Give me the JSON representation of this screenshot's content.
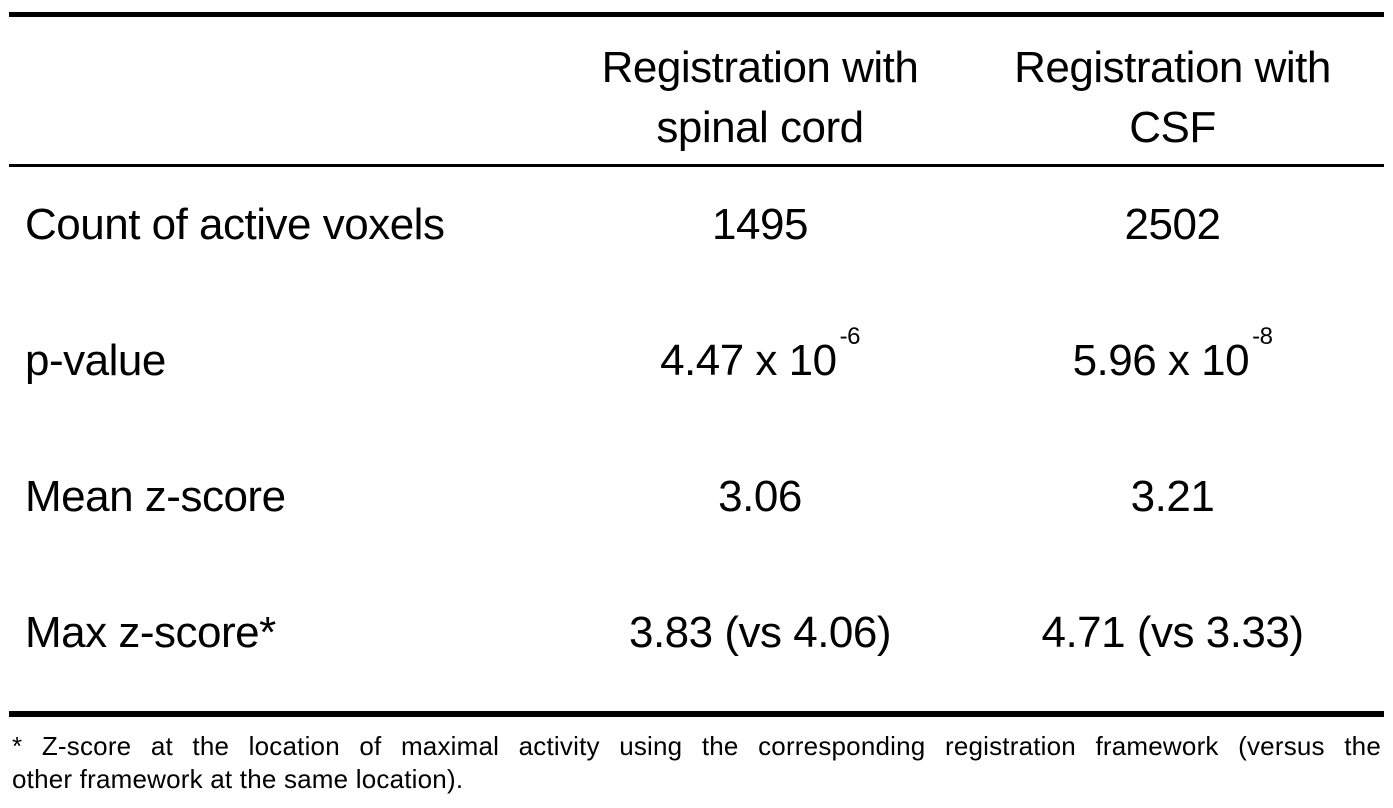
{
  "table": {
    "header": {
      "col_spinal": {
        "line1": "Registration with",
        "line2": "spinal cord"
      },
      "col_csf": {
        "line1": "Registration with",
        "line2": "CSF"
      }
    },
    "rows": [
      {
        "label": "Count of active voxels",
        "spinal": {
          "base": "1495",
          "sup": ""
        },
        "csf": {
          "base": "2502",
          "sup": ""
        }
      },
      {
        "label": "p-value",
        "spinal": {
          "base": "4.47 x 10",
          "sup": "-6"
        },
        "csf": {
          "base": "5.96 x 10",
          "sup": "-8"
        }
      },
      {
        "label": "Mean z-score",
        "spinal": {
          "base": "3.06",
          "sup": ""
        },
        "csf": {
          "base": "3.21",
          "sup": ""
        }
      },
      {
        "label": "Max z-score*",
        "spinal": {
          "base": "3.83 (vs 4.06)",
          "sup": ""
        },
        "csf": {
          "base": "4.71 (vs 3.33)",
          "sup": ""
        }
      }
    ],
    "footnote": {
      "line1": "* Z-score at the location of maximal activity using the corresponding registration framework (versus the",
      "line2": "other framework at the same location)."
    },
    "colors": {
      "text": "#000000",
      "rule": "#000000",
      "background": "#ffffff"
    }
  }
}
